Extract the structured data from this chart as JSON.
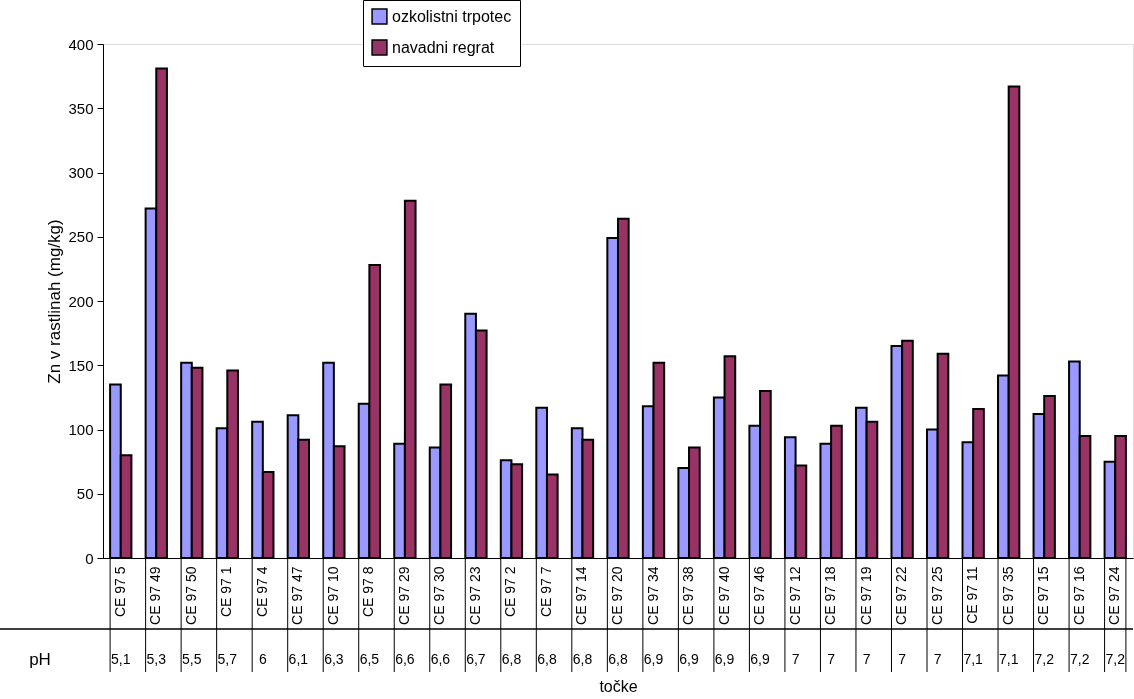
{
  "chart_data": {
    "type": "bar",
    "xlabel": "točke",
    "ylabel": "Zn v rastlinah (mg/kg)",
    "categories": [
      "CE 97 5",
      "CE 97 49",
      "CE 97 50",
      "CE 97 1",
      "CE 97 4",
      "CE 97 47",
      "CE 97 10",
      "CE 97 8",
      "CE 97 29",
      "CE 97 30",
      "CE 97 23",
      "CE 97 2",
      "CE 97 7",
      "CE 97 14",
      "CE 97 20",
      "CE 97 34",
      "CE 97 38",
      "CE 97 40",
      "CE 97 46",
      "CE 97 12",
      "CE 97 18",
      "CE 97 19",
      "CE 97 22",
      "CE 97 25",
      "CE 97 11",
      "CE 97 35",
      "CE 97 15",
      "CE 97 16",
      "CE 97 24"
    ],
    "series": [
      {
        "name": "ozkolistni trpotec",
        "color": "#9999ff",
        "values": [
          135,
          272,
          152,
          101,
          106,
          111,
          152,
          120,
          89,
          86,
          190,
          76,
          117,
          101,
          249,
          118,
          70,
          125,
          103,
          94,
          89,
          117,
          165,
          100,
          90,
          142,
          112,
          153,
          75
        ]
      },
      {
        "name": "navadni regrat",
        "color": "#993366",
        "values": [
          80,
          381,
          148,
          146,
          67,
          92,
          87,
          228,
          278,
          135,
          177,
          73,
          65,
          92,
          264,
          152,
          86,
          157,
          130,
          72,
          103,
          106,
          169,
          159,
          116,
          367,
          126,
          95,
          95
        ]
      }
    ],
    "ylim": [
      0,
      400
    ],
    "yticks": [
      0,
      50,
      100,
      150,
      200,
      250,
      300,
      350,
      400
    ],
    "grid": false,
    "legend": "top",
    "annotations": [
      "pH",
      "5,1",
      "5,3",
      "5,5",
      "5,7",
      "6",
      "6,1",
      "6,3",
      "6,5",
      "6,6",
      "6,6",
      "6,7",
      "6,8",
      "6,8",
      "6,8",
      "6,8",
      "6,9",
      "6,9",
      "6,9",
      "6,9",
      "7",
      "7",
      "7",
      "7",
      "7",
      "7,1",
      "7,1",
      "7,2",
      "7,2",
      "7,2"
    ]
  }
}
